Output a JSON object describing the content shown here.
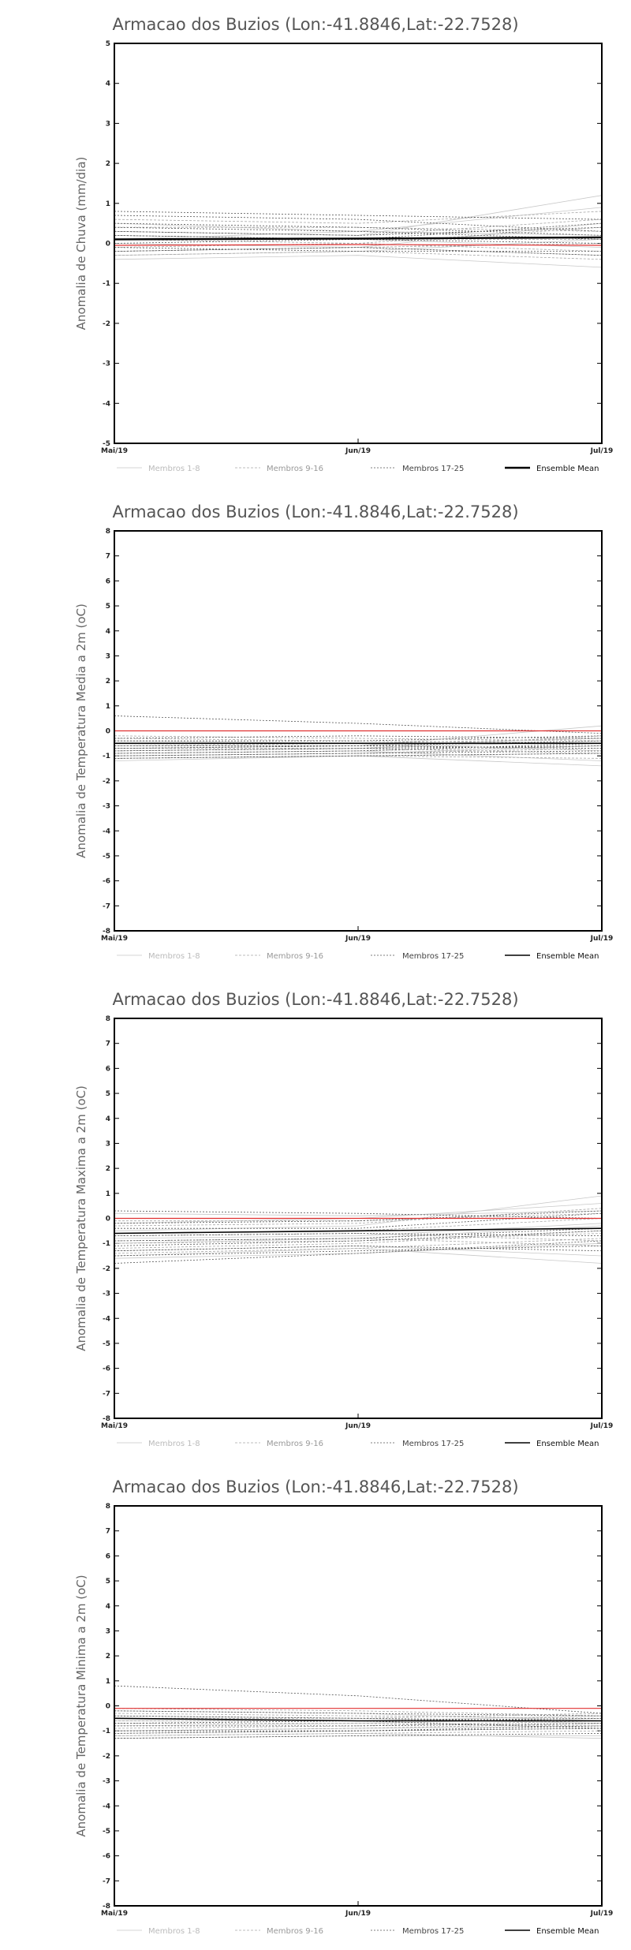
{
  "colors": {
    "members_1_8": "#c8c8c8",
    "members_9_16": "#a6a6a6",
    "members_17_25": "#555555",
    "ensemble_mean": "#000000",
    "reference": "#e03030",
    "axis": "#000000"
  },
  "chart_data": [
    {
      "type": "line",
      "title": "Armacao dos Buzios (Lon:-41.8846,Lat:-22.7528)",
      "ylabel": "Anomalia de Chuva (mm/dia)",
      "x": [
        "Mai/19",
        "Jun/19",
        "Jul/19"
      ],
      "ylim": [
        -5,
        5
      ],
      "yticks": [
        -5,
        -4,
        -3,
        -2,
        -1,
        0,
        1,
        2,
        3,
        4,
        5
      ],
      "legend": [
        "Membros 1-8",
        "Membros 9-16",
        "Membros 17-25",
        "Ensemble Mean"
      ],
      "ensemble_mean": [
        0.1,
        0.12,
        0.15
      ],
      "reference": [
        -0.05,
        -0.03,
        -0.05
      ],
      "members_1_8": [
        [
          0.3,
          0.2,
          1.2
        ],
        [
          -0.2,
          -0.1,
          0.5
        ],
        [
          0.1,
          0.3,
          0.9
        ],
        [
          -0.4,
          -0.3,
          -0.6
        ],
        [
          0.5,
          0.3,
          0.2
        ],
        [
          0.0,
          -0.1,
          -0.3
        ],
        [
          -0.3,
          -0.2,
          0.1
        ],
        [
          0.2,
          0.1,
          -0.1
        ]
      ],
      "members_9_16": [
        [
          0.6,
          0.5,
          0.8
        ],
        [
          -0.1,
          0.0,
          0.4
        ],
        [
          0.3,
          0.2,
          0.6
        ],
        [
          -0.3,
          -0.2,
          -0.4
        ],
        [
          0.4,
          0.4,
          0.3
        ],
        [
          0.1,
          0.0,
          -0.2
        ],
        [
          -0.2,
          -0.1,
          0.0
        ],
        [
          0.2,
          0.1,
          0.1
        ]
      ],
      "members_17_25": [
        [
          0.8,
          0.7,
          0.6
        ],
        [
          0.3,
          0.2,
          0.4
        ],
        [
          0.0,
          0.1,
          0.5
        ],
        [
          -0.2,
          -0.1,
          -0.3
        ],
        [
          0.7,
          0.6,
          0.3
        ],
        [
          0.5,
          0.4,
          0.2
        ],
        [
          -0.1,
          -0.2,
          -0.2
        ],
        [
          0.2,
          0.1,
          0.0
        ],
        [
          0.4,
          0.3,
          0.1
        ]
      ]
    },
    {
      "type": "line",
      "title": "Armacao dos Buzios (Lon:-41.8846,Lat:-22.7528)",
      "ylabel": "Anomalia de Temperatura Media a 2m (oC)",
      "x": [
        "Mai/19",
        "Jun/19",
        "Jul/19"
      ],
      "ylim": [
        -8,
        8
      ],
      "yticks": [
        -8,
        -7,
        -6,
        -5,
        -4,
        -3,
        -2,
        -1,
        0,
        1,
        2,
        3,
        4,
        5,
        6,
        7,
        8
      ],
      "legend": [
        "Membros 1-8",
        "Membros 9-16",
        "Membros 17-25",
        "Ensemble Mean"
      ],
      "ensemble_mean": [
        -0.5,
        -0.5,
        -0.5
      ],
      "reference": [
        0.0,
        0.0,
        0.0
      ],
      "members_1_8": [
        [
          -1.2,
          -1.0,
          -1.4
        ],
        [
          -0.8,
          -0.7,
          -0.4
        ],
        [
          -1.0,
          -0.9,
          -0.6
        ],
        [
          -0.6,
          -0.6,
          0.2
        ],
        [
          -1.1,
          -1.0,
          -0.9
        ],
        [
          -0.4,
          -0.5,
          -0.8
        ],
        [
          -0.9,
          -0.8,
          -1.2
        ],
        [
          -0.7,
          -0.6,
          -0.3
        ]
      ],
      "members_9_16": [
        [
          -1.0,
          -0.9,
          -0.7
        ],
        [
          -0.3,
          -0.4,
          -0.5
        ],
        [
          -0.8,
          -0.7,
          -0.2
        ],
        [
          -1.1,
          -1.0,
          -1.1
        ],
        [
          -0.6,
          -0.5,
          -0.3
        ],
        [
          -0.9,
          -0.8,
          -0.6
        ],
        [
          -0.2,
          -0.3,
          -0.4
        ],
        [
          -0.7,
          -0.7,
          -0.9
        ]
      ],
      "members_17_25": [
        [
          0.6,
          0.3,
          -0.1
        ],
        [
          -0.8,
          -0.7,
          -0.6
        ],
        [
          -1.0,
          -0.9,
          -0.8
        ],
        [
          -0.4,
          -0.4,
          -0.2
        ],
        [
          -0.6,
          -0.6,
          -0.7
        ],
        [
          -0.9,
          -0.8,
          -0.5
        ],
        [
          -0.3,
          -0.2,
          -0.3
        ],
        [
          -0.7,
          -0.6,
          -0.4
        ],
        [
          -1.1,
          -1.0,
          -0.9
        ]
      ]
    },
    {
      "type": "line",
      "title": "Armacao dos Buzios (Lon:-41.8846,Lat:-22.7528)",
      "ylabel": "Anomalia de Temperatura Maxima a 2m (oC)",
      "x": [
        "Mai/19",
        "Jun/19",
        "Jul/19"
      ],
      "ylim": [
        -8,
        8
      ],
      "yticks": [
        -8,
        -7,
        -6,
        -5,
        -4,
        -3,
        -2,
        -1,
        0,
        1,
        2,
        3,
        4,
        5,
        6,
        7,
        8
      ],
      "legend": [
        "Membros 1-8",
        "Membros 9-16",
        "Membros 17-25",
        "Ensemble Mean"
      ],
      "ensemble_mean": [
        -0.6,
        -0.5,
        -0.4
      ],
      "reference": [
        0.0,
        0.0,
        0.0
      ],
      "members_1_8": [
        [
          -1.5,
          -1.2,
          -1.8
        ],
        [
          -0.5,
          -0.3,
          0.9
        ],
        [
          -1.0,
          -0.8,
          -0.3
        ],
        [
          -0.2,
          0.0,
          0.6
        ],
        [
          -1.3,
          -1.1,
          -1.5
        ],
        [
          -0.8,
          -0.7,
          -0.2
        ],
        [
          -1.6,
          -1.4,
          -1.0
        ],
        [
          0.2,
          0.1,
          0.3
        ]
      ],
      "members_9_16": [
        [
          -1.2,
          -1.0,
          -0.5
        ],
        [
          -0.3,
          -0.2,
          0.4
        ],
        [
          -0.9,
          -0.8,
          -1.1
        ],
        [
          -1.4,
          -1.2,
          -0.8
        ],
        [
          -0.6,
          -0.5,
          0.0
        ],
        [
          -1.0,
          -0.9,
          -0.6
        ],
        [
          -0.1,
          -0.1,
          0.2
        ],
        [
          -0.7,
          -0.6,
          -0.9
        ]
      ],
      "members_17_25": [
        [
          -1.8,
          -1.4,
          -0.9
        ],
        [
          -0.4,
          -0.4,
          0.2
        ],
        [
          -1.1,
          -0.9,
          -0.5
        ],
        [
          0.3,
          0.2,
          0.0
        ],
        [
          -0.7,
          -0.6,
          -0.7
        ],
        [
          -1.3,
          -1.1,
          -1.3
        ],
        [
          -0.2,
          -0.1,
          0.3
        ],
        [
          -0.9,
          -0.8,
          -0.4
        ],
        [
          -1.5,
          -1.3,
          -1.1
        ]
      ]
    },
    {
      "type": "line",
      "title": "Armacao dos Buzios (Lon:-41.8846,Lat:-22.7528)",
      "ylabel": "Anomalia de Temperatura Minima a 2m (oC)",
      "x": [
        "Mai/19",
        "Jun/19",
        "Jul/19"
      ],
      "ylim": [
        -8,
        8
      ],
      "yticks": [
        -8,
        -7,
        -6,
        -5,
        -4,
        -3,
        -2,
        -1,
        0,
        1,
        2,
        3,
        4,
        5,
        6,
        7,
        8
      ],
      "legend": [
        "Membros 1-8",
        "Membros 9-16",
        "Membros 17-25",
        "Ensemble Mean"
      ],
      "ensemble_mean": [
        -0.5,
        -0.6,
        -0.6
      ],
      "reference": [
        -0.1,
        -0.1,
        -0.1
      ],
      "members_1_8": [
        [
          -1.3,
          -1.2,
          -1.2
        ],
        [
          -0.6,
          -0.6,
          -0.4
        ],
        [
          -1.0,
          -0.9,
          -0.8
        ],
        [
          -0.2,
          -0.3,
          -0.6
        ],
        [
          -1.2,
          -1.1,
          -1.3
        ],
        [
          -0.8,
          -0.7,
          -0.5
        ],
        [
          -0.4,
          -0.5,
          -0.7
        ],
        [
          -1.1,
          -1.0,
          -0.9
        ]
      ],
      "members_9_16": [
        [
          -0.9,
          -0.8,
          -0.6
        ],
        [
          -0.3,
          -0.4,
          -0.5
        ],
        [
          -1.2,
          -1.1,
          -1.0
        ],
        [
          -0.5,
          -0.5,
          -0.3
        ],
        [
          -0.7,
          -0.7,
          -0.8
        ],
        [
          -1.0,
          -0.9,
          -0.7
        ],
        [
          -0.1,
          -0.2,
          -0.4
        ],
        [
          -0.6,
          -0.6,
          -0.6
        ]
      ],
      "members_17_25": [
        [
          0.8,
          0.4,
          -0.3
        ],
        [
          -1.3,
          -1.2,
          -1.1
        ],
        [
          -0.4,
          -0.5,
          -0.6
        ],
        [
          -0.7,
          -0.6,
          -0.5
        ],
        [
          -1.0,
          -1.0,
          -0.9
        ],
        [
          -0.2,
          -0.3,
          -0.4
        ],
        [
          -0.8,
          -0.8,
          -0.7
        ],
        [
          -1.1,
          -1.0,
          -0.8
        ],
        [
          -0.5,
          -0.6,
          -0.9
        ]
      ]
    }
  ]
}
